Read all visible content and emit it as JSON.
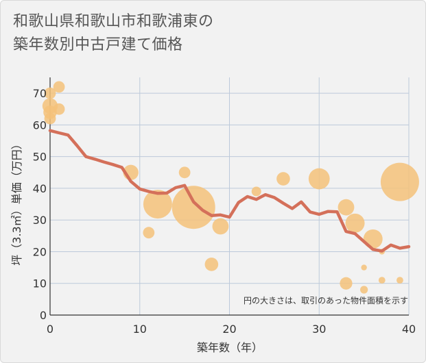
{
  "title_lines": [
    "和歌山県和歌山市和歌浦東の",
    "築年数別中古戸建て価格"
  ],
  "chart_data": {
    "type": "scatter",
    "title": "和歌山県和歌山市和歌浦東の築年数別中古戸建て価格",
    "xlabel": "築年数（年）",
    "ylabel": "坪（3.3㎡）単価（万円）",
    "xlim": [
      0,
      40
    ],
    "ylim": [
      0,
      75
    ],
    "xticks": [
      0,
      10,
      20,
      30,
      40
    ],
    "yticks": [
      0,
      10,
      20,
      30,
      40,
      50,
      60,
      70
    ],
    "grid": true,
    "note": "円の大きさは、取引のあった物件面積を示す",
    "colors": {
      "points": "#f5c27a",
      "line": "#d4705a",
      "grid": "#bcc9da",
      "background": "#f2f2f2"
    },
    "scatter": [
      {
        "x": 0,
        "y": 70,
        "size": 1.2
      },
      {
        "x": 1,
        "y": 72,
        "size": 1.2
      },
      {
        "x": 0,
        "y": 66,
        "size": 1.6
      },
      {
        "x": 1,
        "y": 65,
        "size": 1.2
      },
      {
        "x": 0,
        "y": 64,
        "size": 1.4
      },
      {
        "x": 0,
        "y": 62,
        "size": 1.2
      },
      {
        "x": 9,
        "y": 45,
        "size": 1.6
      },
      {
        "x": 11,
        "y": 26,
        "size": 1.2
      },
      {
        "x": 12,
        "y": 35,
        "size": 3.0
      },
      {
        "x": 15,
        "y": 45,
        "size": 1.2
      },
      {
        "x": 16,
        "y": 34,
        "size": 4.5
      },
      {
        "x": 18,
        "y": 16,
        "size": 1.4
      },
      {
        "x": 19,
        "y": 28,
        "size": 1.7
      },
      {
        "x": 23,
        "y": 39,
        "size": 1.0
      },
      {
        "x": 26,
        "y": 43,
        "size": 1.4
      },
      {
        "x": 30,
        "y": 43,
        "size": 2.2
      },
      {
        "x": 33,
        "y": 34,
        "size": 1.7
      },
      {
        "x": 34,
        "y": 29,
        "size": 2.0
      },
      {
        "x": 33,
        "y": 10,
        "size": 1.3
      },
      {
        "x": 35,
        "y": 15,
        "size": 0.6
      },
      {
        "x": 35,
        "y": 8,
        "size": 0.8
      },
      {
        "x": 36,
        "y": 24,
        "size": 2.0
      },
      {
        "x": 37,
        "y": 20,
        "size": 0.6
      },
      {
        "x": 37,
        "y": 11,
        "size": 0.7
      },
      {
        "x": 39,
        "y": 42,
        "size": 4.0
      },
      {
        "x": 39,
        "y": 11,
        "size": 0.7
      }
    ],
    "trend": {
      "x": [
        0,
        1,
        2,
        3,
        4,
        5,
        6,
        7,
        8,
        9,
        10,
        11,
        12,
        13,
        14,
        15,
        16,
        17,
        18,
        19,
        20,
        21,
        22,
        23,
        24,
        25,
        26,
        27,
        28,
        29,
        30,
        31,
        32,
        33,
        34,
        35,
        36,
        37,
        38,
        39,
        40
      ],
      "y": [
        58.2,
        57.5,
        56.8,
        53.5,
        50,
        49.2,
        48.3,
        47.5,
        46.6,
        42.2,
        39.8,
        39,
        38.4,
        38.5,
        40.2,
        40.9,
        35.7,
        33.1,
        31.4,
        31.6,
        30.9,
        35.5,
        37.4,
        36.5,
        38,
        37.1,
        35.3,
        33.6,
        35.7,
        32.5,
        31.8,
        32.7,
        32.6,
        26.4,
        25.7,
        23.2,
        20.7,
        20.2,
        22.1,
        21.1,
        21.6
      ]
    }
  }
}
